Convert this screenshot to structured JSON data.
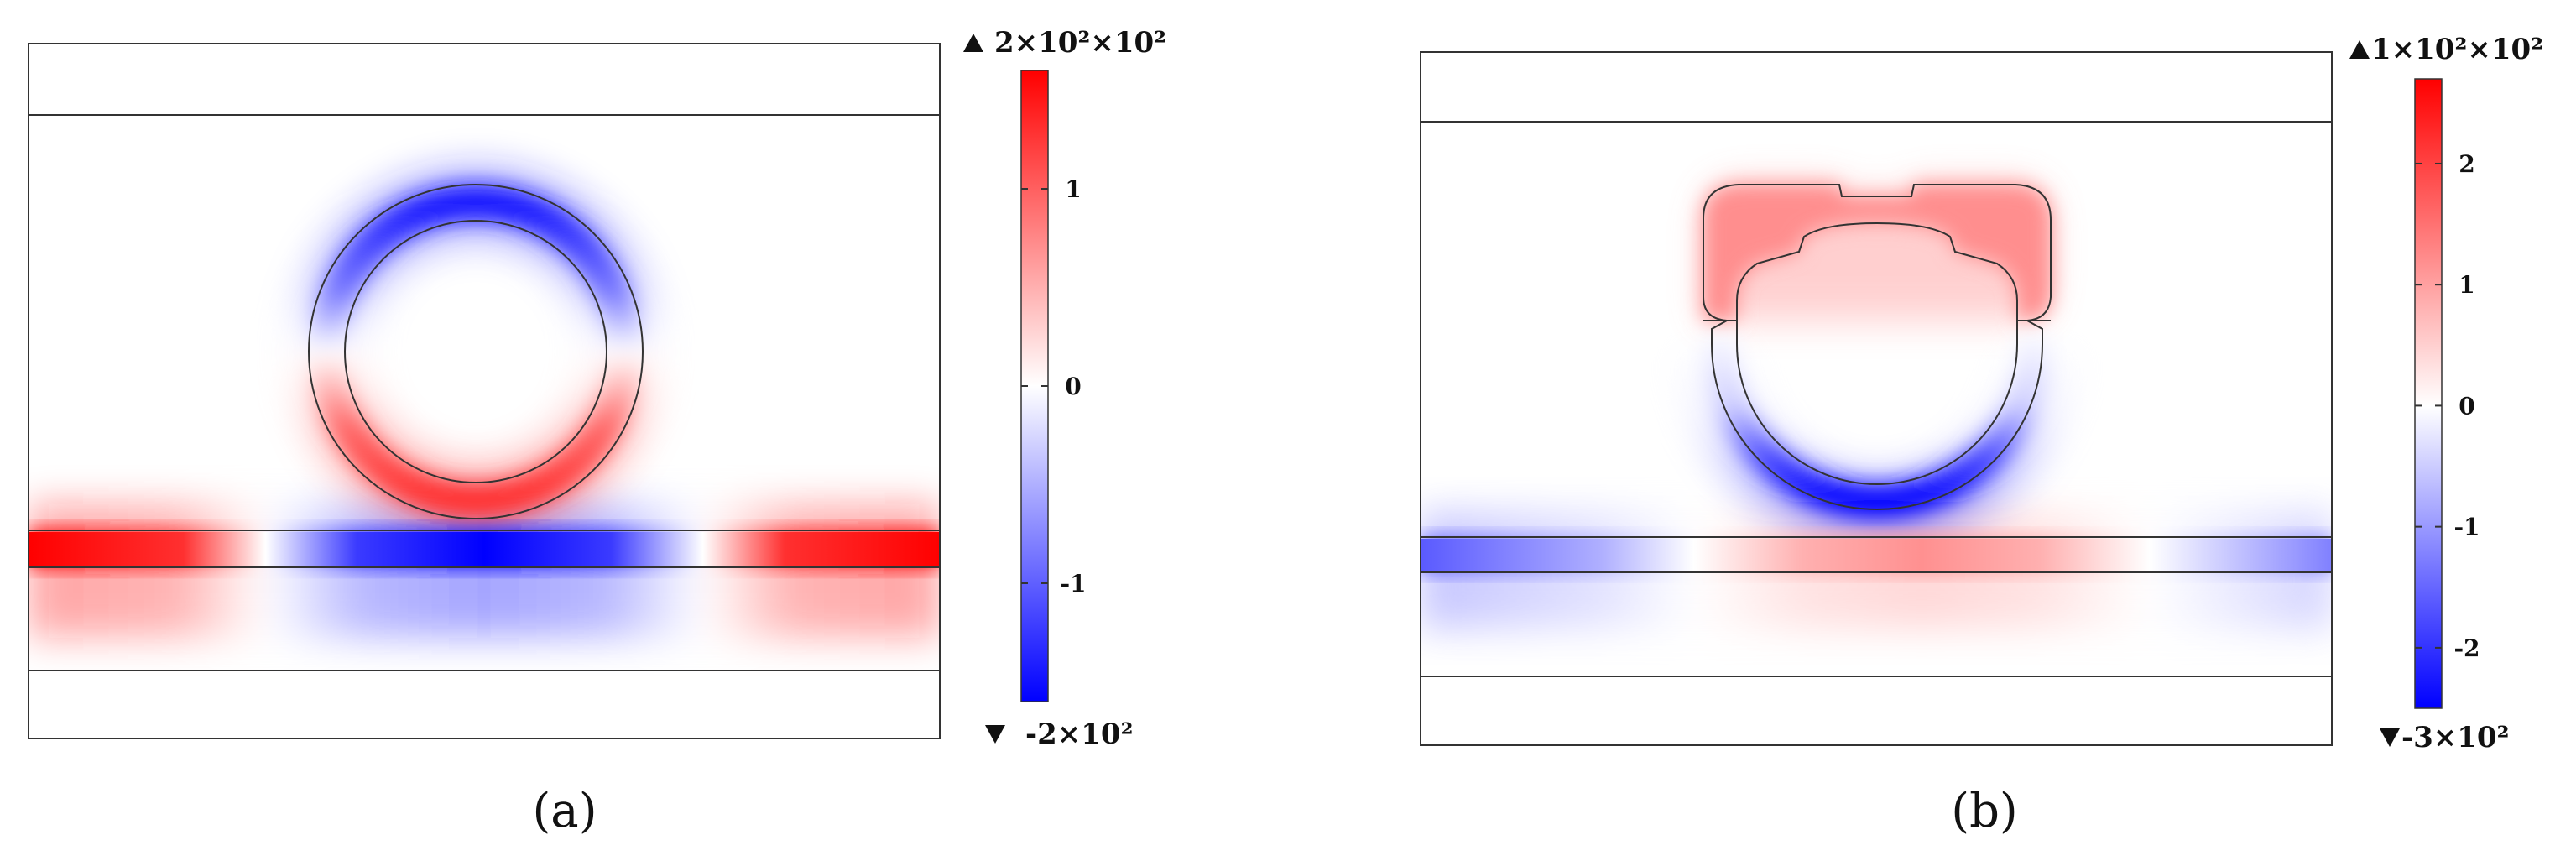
{
  "panels": [
    {
      "id": "a",
      "label": "(a)",
      "colorbar": {
        "max_label": "2×10²×10²",
        "min_label": "-2×10²",
        "ticks": [
          {
            "label": "1",
            "value": 1
          },
          {
            "label": "0",
            "value": 0
          },
          {
            "label": "-1",
            "value": -1
          }
        ],
        "range": [
          -1.6,
          1.6
        ]
      }
    },
    {
      "id": "b",
      "label": "(b)",
      "colorbar": {
        "max_label": "1×10²×10²",
        "min_label": "-3×10²",
        "ticks": [
          {
            "label": "2",
            "value": 2
          },
          {
            "label": "1",
            "value": 1
          },
          {
            "label": "0",
            "value": 0
          },
          {
            "label": "-1",
            "value": -1
          },
          {
            "label": "-2",
            "value": -2
          }
        ],
        "range": [
          -2.5,
          2.7
        ]
      }
    }
  ],
  "colors": {
    "positive": "#ff0000",
    "negative": "#0000ff",
    "neutral": "#ffffff",
    "outline": "#333333"
  }
}
